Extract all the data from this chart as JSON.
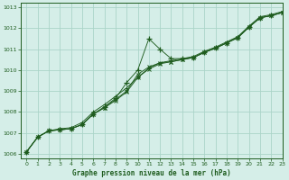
{
  "xlabel": "Graphe pression niveau de la mer (hPa)",
  "background_color": "#d5eee8",
  "plot_bg_color": "#d5eee8",
  "grid_color": "#aad4c8",
  "line_color": "#1e5c1e",
  "xlim": [
    -0.5,
    23
  ],
  "ylim": [
    1005.8,
    1013.2
  ],
  "yticks": [
    1006,
    1007,
    1008,
    1009,
    1010,
    1011,
    1012,
    1013
  ],
  "xticks": [
    0,
    1,
    2,
    3,
    4,
    5,
    6,
    7,
    8,
    9,
    10,
    11,
    12,
    13,
    14,
    15,
    16,
    17,
    18,
    19,
    20,
    21,
    22,
    23
  ],
  "series": [
    {
      "x": [
        0,
        1,
        2,
        3,
        4,
        5,
        6,
        7,
        8,
        9,
        10,
        11,
        12,
        13,
        14,
        15,
        16,
        17,
        18,
        19,
        20,
        21,
        22,
        23
      ],
      "y": [
        1006.1,
        1006.8,
        1007.1,
        1007.15,
        1007.2,
        1007.4,
        1007.9,
        1008.25,
        1008.65,
        1009.4,
        1010.0,
        1011.5,
        1011.0,
        1010.55,
        1010.55,
        1010.6,
        1010.85,
        1011.05,
        1011.3,
        1011.55,
        1012.05,
        1012.5,
        1012.6,
        1012.75
      ]
    },
    {
      "x": [
        0,
        1,
        2,
        3,
        4,
        5,
        6,
        7,
        8,
        9,
        10,
        11,
        12,
        13,
        14,
        15,
        16,
        17,
        18,
        19,
        20,
        21,
        22,
        23
      ],
      "y": [
        1006.1,
        1006.8,
        1007.1,
        1007.15,
        1007.2,
        1007.4,
        1007.9,
        1008.2,
        1008.6,
        1009.0,
        1009.8,
        1010.15,
        1010.35,
        1010.4,
        1010.5,
        1010.6,
        1010.85,
        1011.05,
        1011.3,
        1011.55,
        1012.05,
        1012.5,
        1012.6,
        1012.75
      ]
    },
    {
      "x": [
        0,
        1,
        2,
        3,
        4,
        5,
        6,
        7,
        8,
        9,
        10,
        11,
        12,
        13,
        14,
        15,
        16,
        17,
        18,
        19,
        20,
        21,
        22,
        23
      ],
      "y": [
        1006.1,
        1006.8,
        1007.1,
        1007.15,
        1007.2,
        1007.4,
        1007.9,
        1008.2,
        1008.55,
        1008.95,
        1009.65,
        1010.05,
        1010.3,
        1010.4,
        1010.5,
        1010.6,
        1010.85,
        1011.05,
        1011.3,
        1011.55,
        1012.05,
        1012.5,
        1012.6,
        1012.75
      ]
    },
    {
      "x": [
        0,
        1,
        2,
        3,
        4,
        5,
        6,
        7,
        8,
        9,
        10,
        11,
        12,
        13,
        14,
        15,
        16,
        17,
        18,
        19,
        20,
        21,
        22,
        23
      ],
      "y": [
        1006.1,
        1006.8,
        1007.1,
        1007.2,
        1007.25,
        1007.5,
        1008.0,
        1008.35,
        1008.75,
        1009.15,
        1009.65,
        1010.1,
        1010.35,
        1010.45,
        1010.55,
        1010.65,
        1010.9,
        1011.1,
        1011.35,
        1011.6,
        1012.1,
        1012.55,
        1012.65,
        1012.8
      ]
    }
  ]
}
